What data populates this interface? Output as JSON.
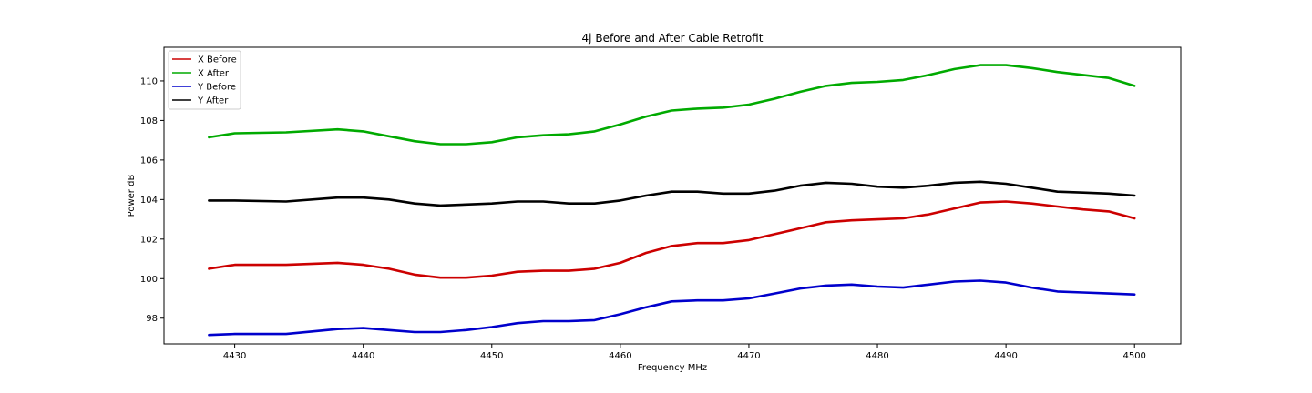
{
  "chart_data": {
    "type": "line",
    "title": "4j Before and After Cable Retrofit",
    "xlabel": "Frequency MHz",
    "ylabel": "Power dB",
    "xlim": [
      4424.5,
      4503.6
    ],
    "ylim": [
      96.7,
      111.7
    ],
    "xticks": [
      4430,
      4440,
      4450,
      4460,
      4470,
      4480,
      4490,
      4500
    ],
    "yticks": [
      98,
      100,
      102,
      104,
      106,
      108,
      110
    ],
    "grid": false,
    "legend_position": "top-left",
    "series": [
      {
        "name": "X Before",
        "color": "#cc0000",
        "x": [
          4428,
          4430,
          4434,
          4438,
          4440,
          4442,
          4444,
          4446,
          4448,
          4450,
          4452,
          4454,
          4456,
          4458,
          4460,
          4462,
          4464,
          4466,
          4468,
          4470,
          4472,
          4474,
          4476,
          4478,
          4480,
          4482,
          4484,
          4486,
          4488,
          4490,
          4492,
          4494,
          4496,
          4498,
          4500
        ],
        "y": [
          100.5,
          100.7,
          100.7,
          100.8,
          100.7,
          100.5,
          100.2,
          100.05,
          100.05,
          100.15,
          100.35,
          100.4,
          100.4,
          100.5,
          100.8,
          101.3,
          101.65,
          101.8,
          101.8,
          101.95,
          102.25,
          102.55,
          102.85,
          102.95,
          103.0,
          103.05,
          103.25,
          103.55,
          103.85,
          103.9,
          103.8,
          103.65,
          103.5,
          103.4,
          103.05
        ]
      },
      {
        "name": "X After",
        "color": "#00aa00",
        "x": [
          4428,
          4430,
          4434,
          4438,
          4440,
          4442,
          4444,
          4446,
          4448,
          4450,
          4452,
          4454,
          4456,
          4458,
          4460,
          4462,
          4464,
          4466,
          4468,
          4470,
          4472,
          4474,
          4476,
          4478,
          4480,
          4482,
          4484,
          4486,
          4488,
          4490,
          4492,
          4494,
          4496,
          4498,
          4500
        ],
        "y": [
          107.15,
          107.35,
          107.4,
          107.55,
          107.45,
          107.2,
          106.95,
          106.8,
          106.8,
          106.9,
          107.15,
          107.25,
          107.3,
          107.45,
          107.8,
          108.2,
          108.5,
          108.6,
          108.65,
          108.8,
          109.1,
          109.45,
          109.75,
          109.9,
          109.95,
          110.05,
          110.3,
          110.6,
          110.8,
          110.8,
          110.65,
          110.45,
          110.3,
          110.15,
          109.75
        ]
      },
      {
        "name": "Y Before",
        "color": "#0000cc",
        "x": [
          4428,
          4430,
          4434,
          4438,
          4440,
          4442,
          4444,
          4446,
          4448,
          4450,
          4452,
          4454,
          4456,
          4458,
          4460,
          4462,
          4464,
          4466,
          4468,
          4470,
          4472,
          4474,
          4476,
          4478,
          4480,
          4482,
          4484,
          4486,
          4488,
          4490,
          4492,
          4494,
          4496,
          4498,
          4500
        ],
        "y": [
          97.15,
          97.2,
          97.2,
          97.45,
          97.5,
          97.4,
          97.3,
          97.3,
          97.4,
          97.55,
          97.75,
          97.85,
          97.85,
          97.9,
          98.2,
          98.55,
          98.85,
          98.9,
          98.9,
          99.0,
          99.25,
          99.5,
          99.65,
          99.7,
          99.6,
          99.55,
          99.7,
          99.85,
          99.9,
          99.8,
          99.55,
          99.35,
          99.3,
          99.25,
          99.2
        ]
      },
      {
        "name": "Y After",
        "color": "#000000",
        "x": [
          4428,
          4430,
          4434,
          4438,
          4440,
          4442,
          4444,
          4446,
          4448,
          4450,
          4452,
          4454,
          4456,
          4458,
          4460,
          4462,
          4464,
          4466,
          4468,
          4470,
          4472,
          4474,
          4476,
          4478,
          4480,
          4482,
          4484,
          4486,
          4488,
          4490,
          4492,
          4494,
          4496,
          4498,
          4500
        ],
        "y": [
          103.95,
          103.95,
          103.9,
          104.1,
          104.1,
          104.0,
          103.8,
          103.7,
          103.75,
          103.8,
          103.9,
          103.9,
          103.8,
          103.8,
          103.95,
          104.2,
          104.4,
          104.4,
          104.3,
          104.3,
          104.45,
          104.7,
          104.85,
          104.8,
          104.65,
          104.6,
          104.7,
          104.85,
          104.9,
          104.8,
          104.6,
          104.4,
          104.35,
          104.3,
          104.2
        ]
      }
    ]
  }
}
